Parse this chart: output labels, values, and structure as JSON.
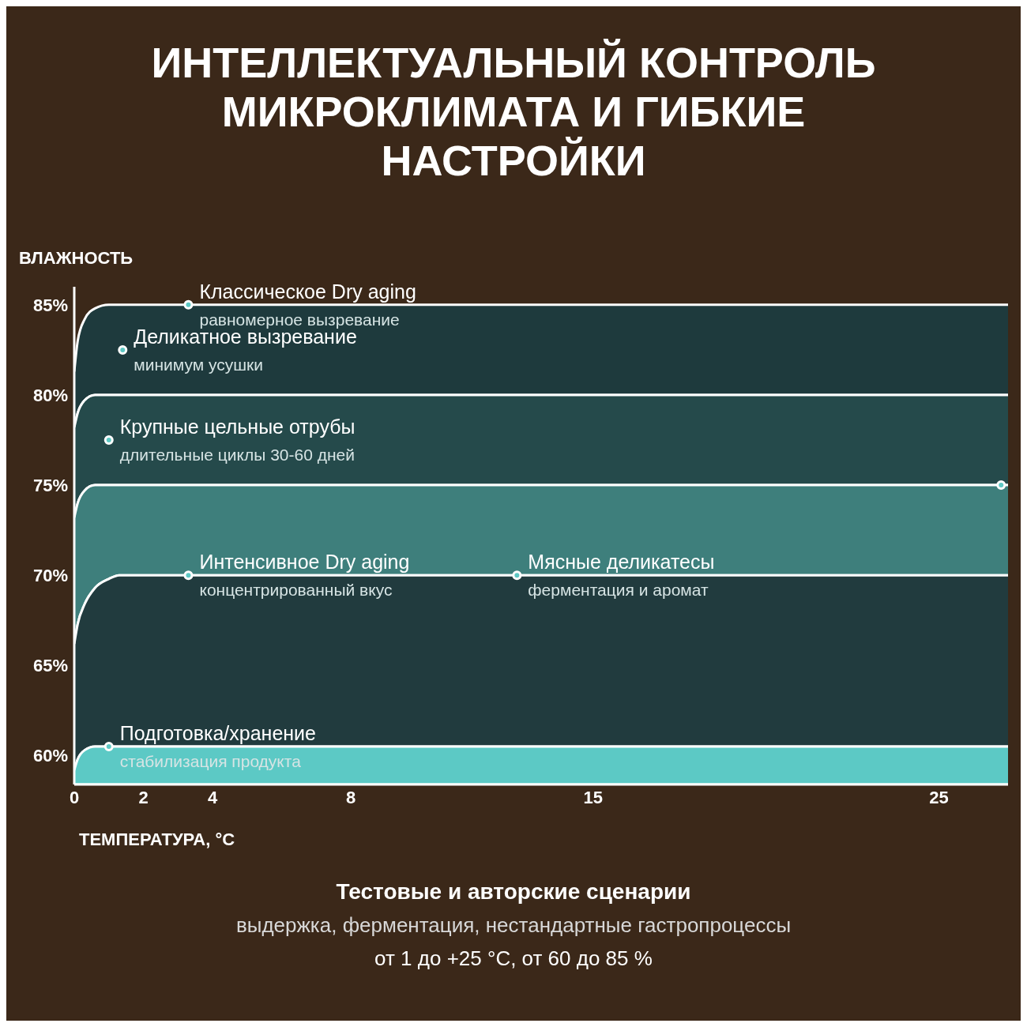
{
  "chart_data": {
    "type": "area",
    "title": "ИНТЕЛЛЕКТУАЛЬНЫЙ КОНТРОЛЬ МИКРОКЛИМАТА И ГИБКИЕ НАСТРОЙКИ",
    "xlabel": "ТЕМПЕРАТУРА, °C",
    "ylabel": "ВЛАЖНОСТЬ",
    "xlim": [
      0,
      27
    ],
    "xticks": [
      0,
      2,
      4,
      8,
      15,
      25
    ],
    "ylim": [
      58.4,
      86
    ],
    "yticks": [
      {
        "value": 60,
        "label": "60%"
      },
      {
        "value": 65,
        "label": "65%"
      },
      {
        "value": 70,
        "label": "70%"
      },
      {
        "value": 75,
        "label": "75%"
      },
      {
        "value": 80,
        "label": "80%"
      },
      {
        "value": 85,
        "label": "85%"
      }
    ],
    "grid": false,
    "legend": false,
    "series": [
      {
        "type": "area",
        "color": "#1e3a3d",
        "x": [
          0,
          0.1,
          0.3,
          0.6,
          1.0,
          1.3,
          1.6,
          27
        ],
        "values": [
          81.3,
          83,
          84.2,
          84.8,
          85,
          85,
          85,
          85
        ]
      },
      {
        "type": "area",
        "color": "#254a4b",
        "x": [
          0,
          0.1,
          0.3,
          0.6,
          1.0,
          1.3,
          1.6,
          27
        ],
        "values": [
          78.2,
          79,
          79.7,
          80,
          80,
          80,
          80,
          80
        ]
      },
      {
        "type": "area",
        "color": "#3e7f7c",
        "x": [
          0,
          0.1,
          0.3,
          0.6,
          1.0,
          1.3,
          1.6,
          27
        ],
        "values": [
          73.2,
          74,
          74.7,
          75,
          75,
          75,
          75,
          75
        ]
      },
      {
        "type": "area",
        "color": "#213b3e",
        "x": [
          0,
          0.1,
          0.3,
          0.6,
          1.0,
          1.3,
          1.6,
          27
        ],
        "values": [
          66.2,
          67.3,
          68.4,
          69.3,
          69.8,
          70,
          70,
          70
        ]
      },
      {
        "type": "area",
        "color": "#5cc9c5",
        "x": [
          0,
          0.1,
          0.3,
          0.6,
          1.0,
          1.3,
          1.6,
          27
        ],
        "values": [
          59.2,
          59.8,
          60.3,
          60.5,
          60.5,
          60.5,
          60.5,
          60.5
        ]
      },
      {
        "type": "scatter",
        "color": "#5ec8c4",
        "marker": "circle",
        "x": [
          3.3,
          1.4,
          1.0,
          26.8,
          3.3,
          12.8,
          1.0
        ],
        "values": [
          85,
          82.5,
          77.5,
          75,
          70,
          70,
          60.5
        ]
      }
    ],
    "annotations": [
      {
        "text": "Классическое Dry aging\nравномерное вызревание",
        "x": 3.3,
        "y": 85
      },
      {
        "text": "Деликатное вызревание\nминимум усушки",
        "x": 1.4,
        "y": 82.5
      },
      {
        "text": "Крупные цельные отрубы\nдлительные циклы 30-60 дней",
        "x": 1.0,
        "y": 77.5
      },
      {
        "text": "Интенсивное Dry aging\nконцентрированный вкус",
        "x": 3.3,
        "y": 70
      },
      {
        "text": "Мясные деликатесы\nферментация и аромат",
        "x": 12.8,
        "y": 70
      },
      {
        "text": "Подготовка/хранение\nстабилизация продукта",
        "x": 1.0,
        "y": 60.5
      },
      "Тестовые и авторские сценарии",
      "выдержка, ферментация, нестандартные гастропроцессы",
      "от 1 до +25 °C, от 60 до 85 %"
    ]
  }
}
